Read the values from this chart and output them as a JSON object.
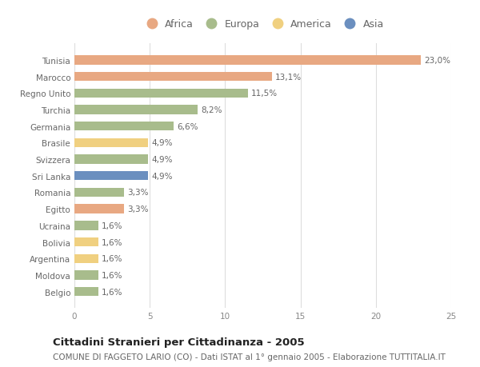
{
  "countries": [
    "Tunisia",
    "Marocco",
    "Regno Unito",
    "Turchia",
    "Germania",
    "Brasile",
    "Svizzera",
    "Sri Lanka",
    "Romania",
    "Egitto",
    "Ucraina",
    "Bolivia",
    "Argentina",
    "Moldova",
    "Belgio"
  ],
  "values": [
    23.0,
    13.1,
    11.5,
    8.2,
    6.6,
    4.9,
    4.9,
    4.9,
    3.3,
    3.3,
    1.6,
    1.6,
    1.6,
    1.6,
    1.6
  ],
  "labels": [
    "23,0%",
    "13,1%",
    "11,5%",
    "8,2%",
    "6,6%",
    "4,9%",
    "4,9%",
    "4,9%",
    "3,3%",
    "3,3%",
    "1,6%",
    "1,6%",
    "1,6%",
    "1,6%",
    "1,6%"
  ],
  "continents": [
    "Africa",
    "Africa",
    "Europa",
    "Europa",
    "Europa",
    "America",
    "Europa",
    "Asia",
    "Europa",
    "Africa",
    "Europa",
    "America",
    "America",
    "Europa",
    "Europa"
  ],
  "colors": {
    "Africa": "#E8A882",
    "Europa": "#A8BC8C",
    "America": "#F0D080",
    "Asia": "#6B8FBF"
  },
  "legend_order": [
    "Africa",
    "Europa",
    "America",
    "Asia"
  ],
  "xlim": [
    0,
    25
  ],
  "xticks": [
    0,
    5,
    10,
    15,
    20,
    25
  ],
  "title": "Cittadini Stranieri per Cittadinanza - 2005",
  "subtitle": "COMUNE DI FAGGETO LARIO (CO) - Dati ISTAT al 1° gennaio 2005 - Elaborazione TUTTITALIA.IT",
  "background_color": "#ffffff",
  "bar_height": 0.55,
  "title_fontsize": 9.5,
  "subtitle_fontsize": 7.5,
  "label_fontsize": 7.5,
  "tick_fontsize": 7.5,
  "legend_fontsize": 9
}
